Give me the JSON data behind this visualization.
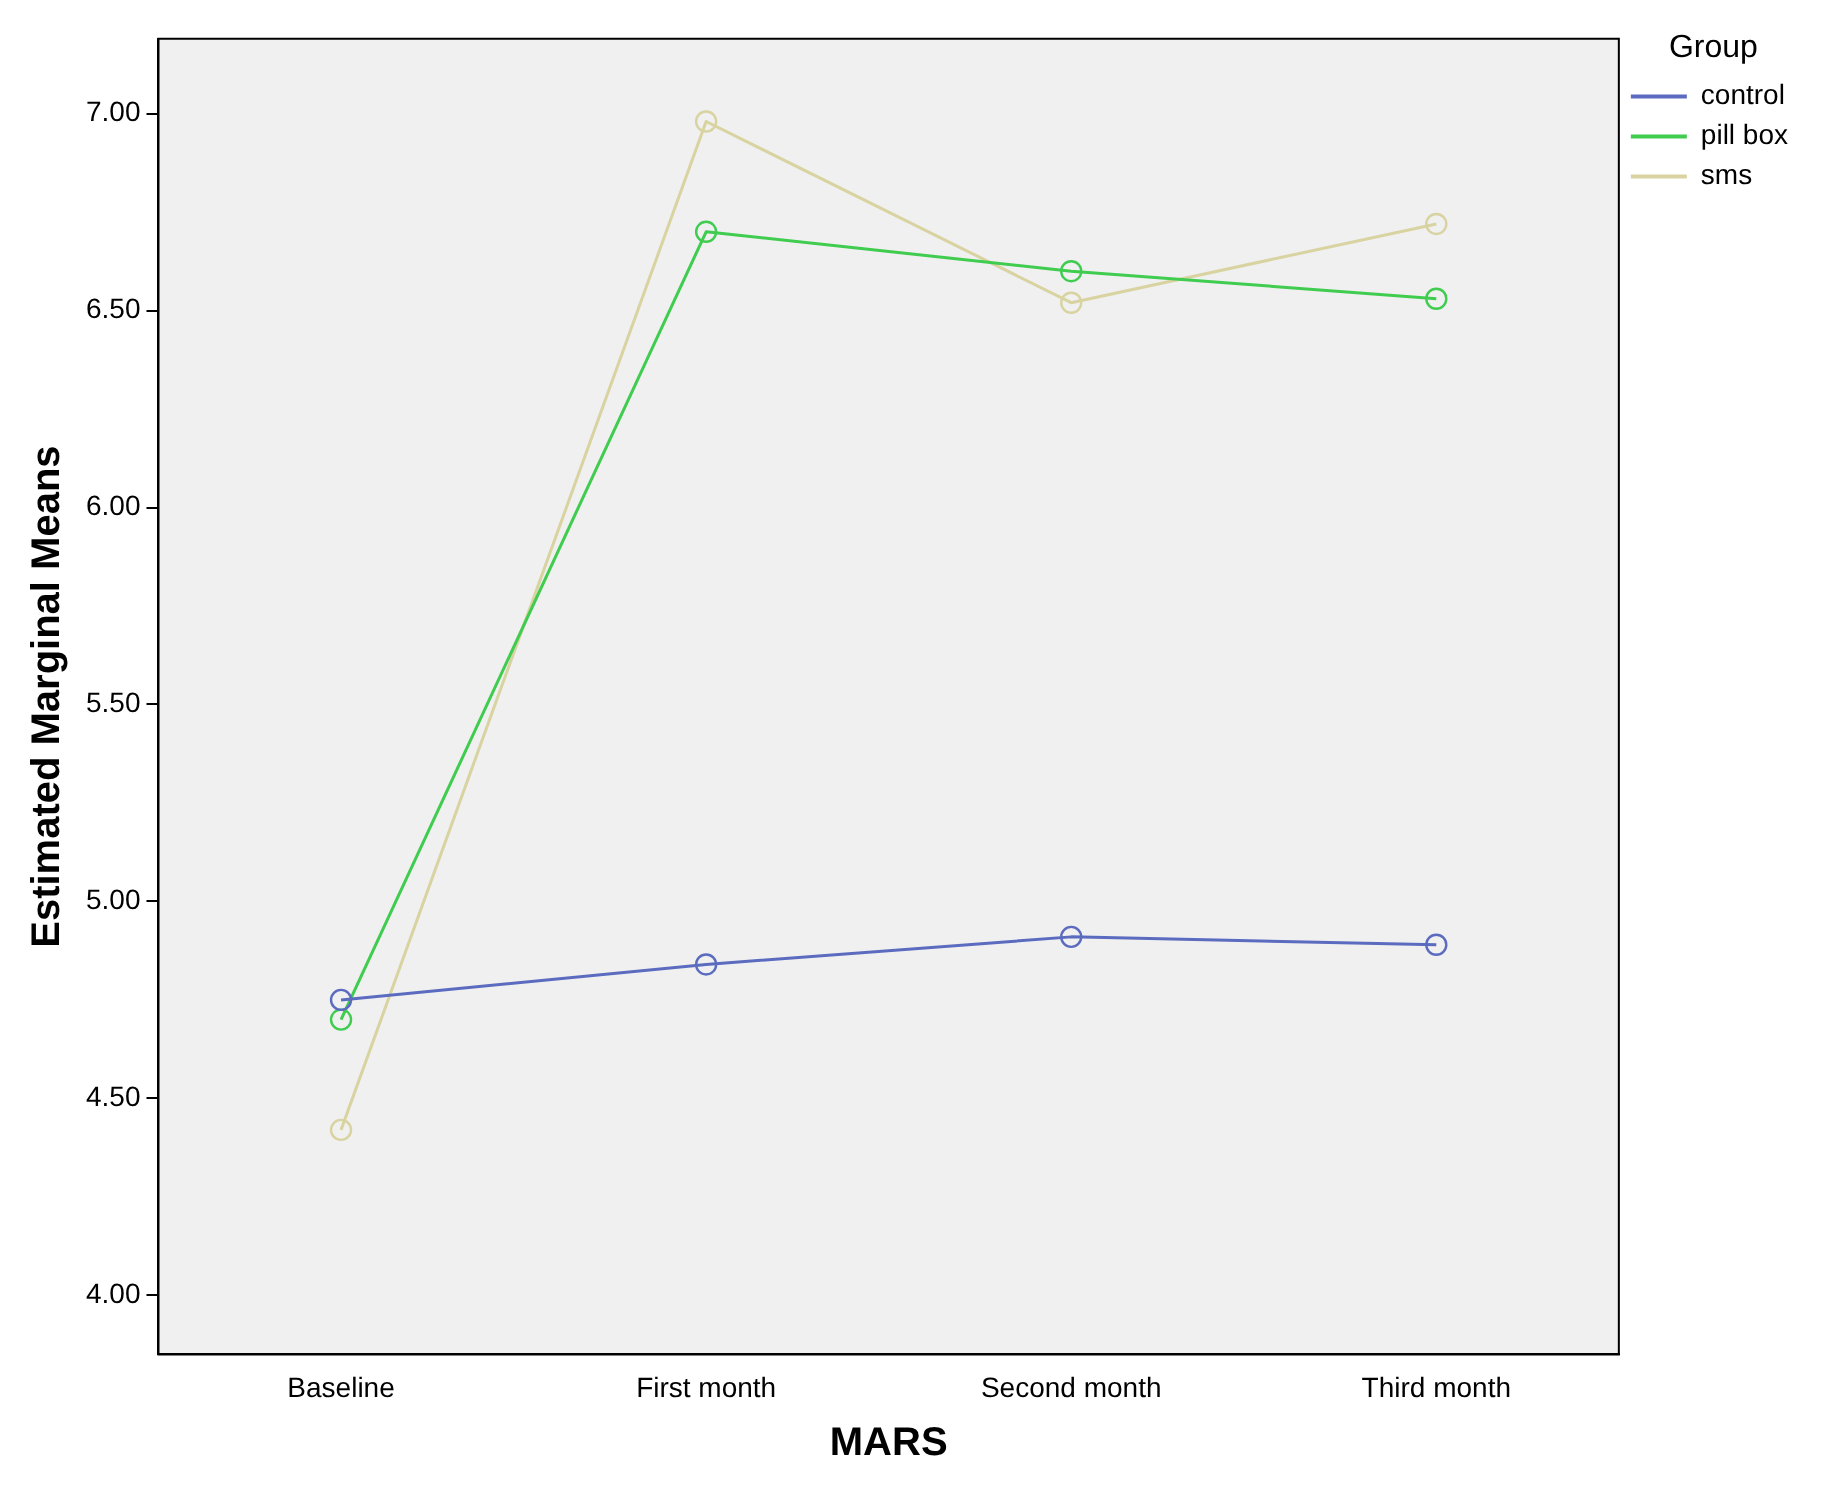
{
  "chart_data": {
    "type": "line",
    "xlabel": "MARS",
    "ylabel": "Estimated Marginal Means",
    "legend_title": "Group",
    "categories": [
      "Baseline",
      "First month",
      "Second month",
      "Third month"
    ],
    "series": [
      {
        "name": "control",
        "color": "#5b6bbf",
        "values": [
          4.75,
          4.84,
          4.91,
          4.89
        ]
      },
      {
        "name": "pill box",
        "color": "#3fcc4f",
        "values": [
          4.7,
          6.7,
          6.6,
          6.53
        ]
      },
      {
        "name": "sms",
        "color": "#d8d3a0",
        "values": [
          4.42,
          6.98,
          6.52,
          6.72
        ]
      }
    ],
    "ylim": [
      3.85,
      7.19
    ],
    "yticks": [
      {
        "value": 4,
        "label": "4.00"
      },
      {
        "value": 4.5,
        "label": "4.50"
      },
      {
        "value": 5,
        "label": "5.00"
      },
      {
        "value": 5.5,
        "label": "5.50"
      },
      {
        "value": 6,
        "label": "6.00"
      },
      {
        "value": 6.5,
        "label": "6.50"
      },
      {
        "value": 7,
        "label": "7.00"
      }
    ],
    "grid": false,
    "legend": "top right",
    "marker": "circle",
    "line_style": "solid"
  }
}
